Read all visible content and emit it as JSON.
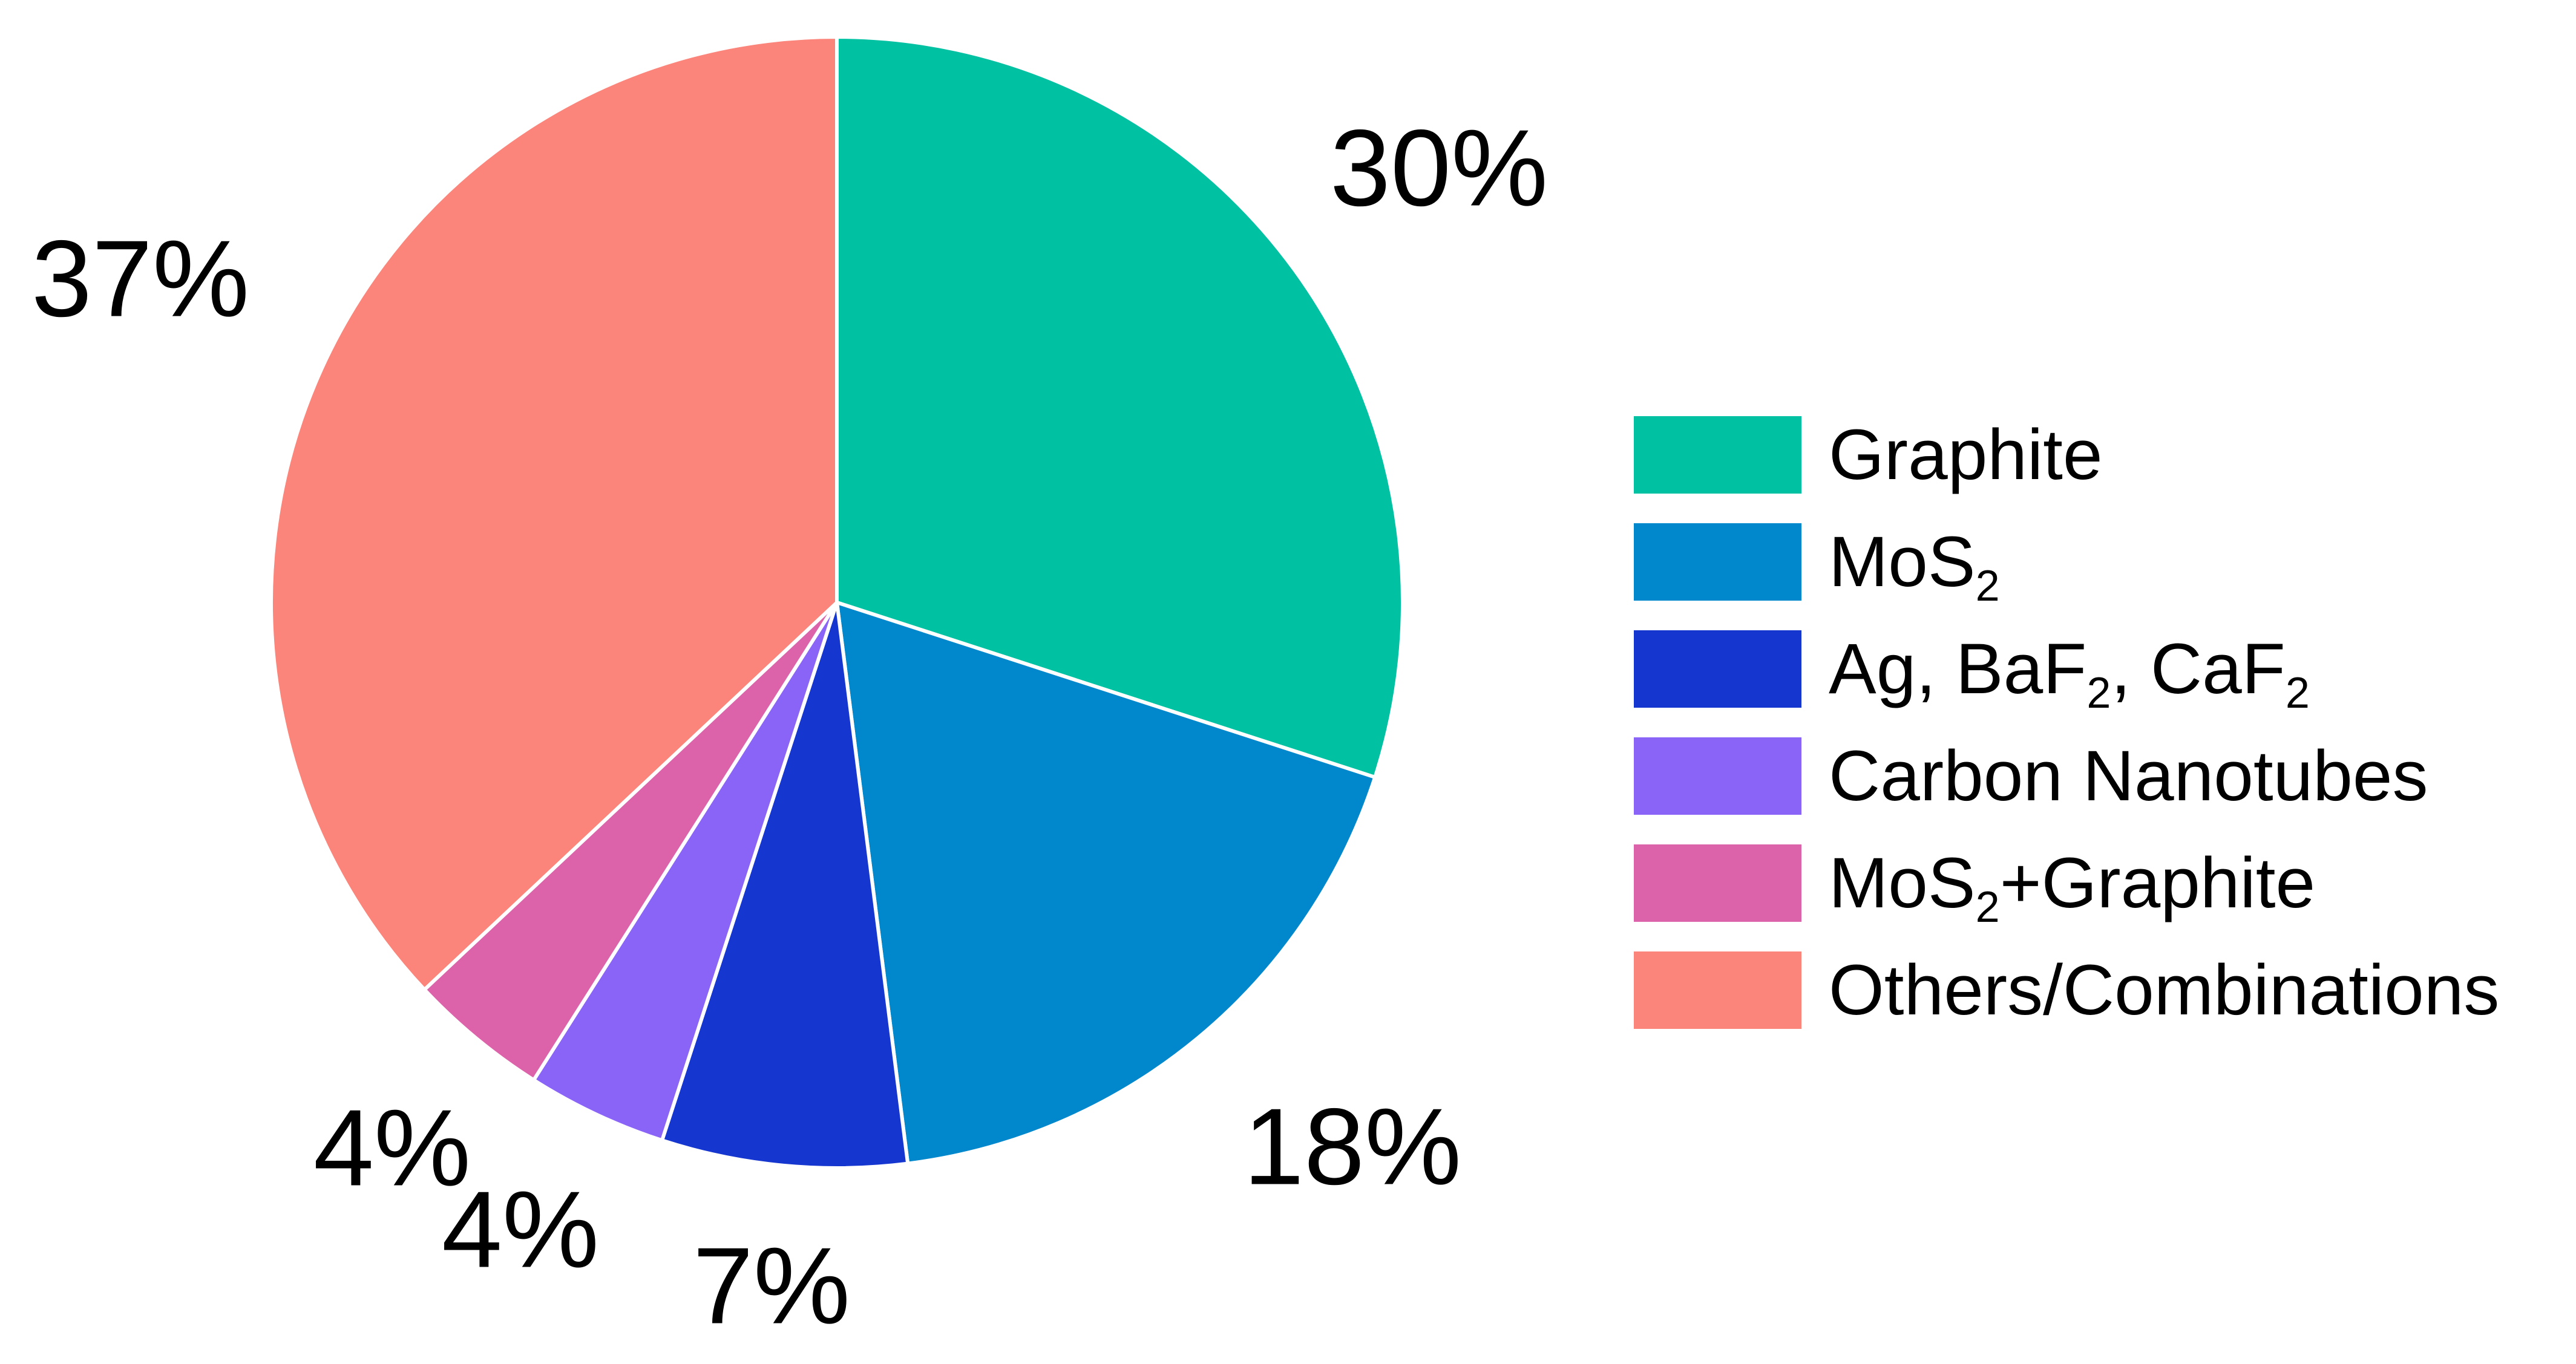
{
  "chart_data": {
    "type": "pie",
    "start_angle_deg": 0,
    "direction": "clockwise",
    "legend_position": "right",
    "slices": [
      {
        "name": "Graphite",
        "name_parts": [
          {
            "t": "Graphite"
          }
        ],
        "value": 30,
        "label": "30%",
        "color": "#00c2a3"
      },
      {
        "name": "MoS2",
        "name_parts": [
          {
            "t": "MoS"
          },
          {
            "t": "2",
            "sub": true
          }
        ],
        "value": 18,
        "label": "18%",
        "color": "#0087cc"
      },
      {
        "name": "Ag, BaF2, CaF2",
        "name_parts": [
          {
            "t": "Ag, BaF"
          },
          {
            "t": "2",
            "sub": true
          },
          {
            "t": ", CaF"
          },
          {
            "t": "2",
            "sub": true
          }
        ],
        "value": 7,
        "label": "7%",
        "color": "#1637cf"
      },
      {
        "name": "Carbon Nanotubes",
        "name_parts": [
          {
            "t": "Carbon Nanotubes"
          }
        ],
        "value": 4,
        "label": "4%",
        "color": "#8a63f7"
      },
      {
        "name": "MoS2+Graphite",
        "name_parts": [
          {
            "t": "MoS"
          },
          {
            "t": "2",
            "sub": true
          },
          {
            "t": "+Graphite"
          }
        ],
        "value": 4,
        "label": "4%",
        "color": "#dc63aa"
      },
      {
        "name": "Others/Combinations",
        "name_parts": [
          {
            "t": "Others/Combinations"
          }
        ],
        "value": 37,
        "label": "37%",
        "color": "#fb857a"
      }
    ]
  }
}
